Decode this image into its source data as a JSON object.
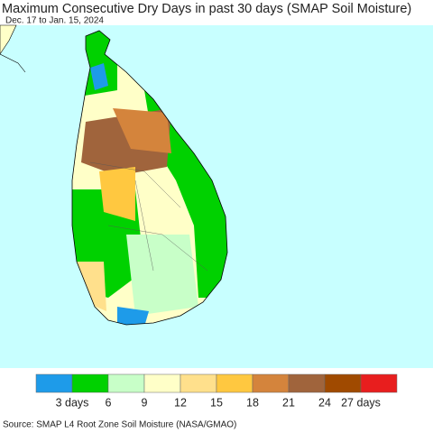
{
  "title": "Maximum Consecutive Dry Days in past 30 days (SMAP Soil Moisture)",
  "subtitle": "Dec. 17 to Jan. 15, 2024",
  "legend": {
    "colors": [
      "#1e9be9",
      "#00d100",
      "#c8ffc8",
      "#ffffc8",
      "#ffe08c",
      "#ffc840",
      "#d4843c",
      "#a0643c",
      "#a04a00",
      "#e81e1e"
    ],
    "labels": [
      "3 days",
      "6",
      "9",
      "12",
      "15",
      "18",
      "21",
      "24",
      "27 days"
    ]
  },
  "source": "Source: SMAP L4 Root Zone Soil Moisture (NASA/GMAO)"
}
